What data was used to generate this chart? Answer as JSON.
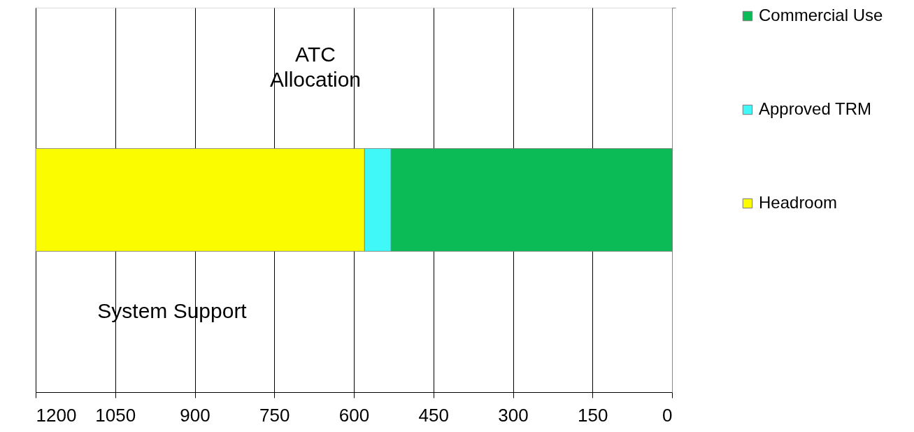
{
  "chart_data": {
    "type": "bar",
    "orientation": "horizontal",
    "stacked": true,
    "categories": [
      null
    ],
    "series": [
      {
        "name": "Commercial Use",
        "color": "#0bbb55",
        "values": [
          530
        ]
      },
      {
        "name": "Approved TRM",
        "color": "#40f8f8",
        "values": [
          50
        ]
      },
      {
        "name": "Headroom",
        "color": "#fcfc00",
        "values": [
          620
        ]
      }
    ],
    "xlim": [
      1200,
      0
    ],
    "xticks": [
      1200,
      1050,
      900,
      750,
      600,
      450,
      300,
      150,
      0
    ],
    "grid": "x",
    "legend": "right",
    "tick_labels": "x",
    "annotations": [
      "ATC\nAllocation",
      "System Support"
    ]
  }
}
